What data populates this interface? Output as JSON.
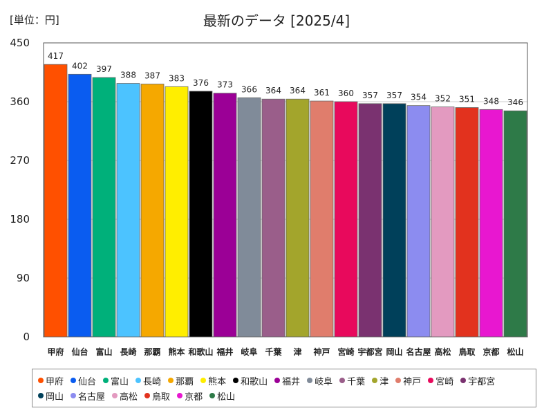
{
  "chart_data": {
    "type": "bar",
    "title": "最新のデータ [2025/4]",
    "unit_label": "[単位：円]",
    "ylim": [
      0,
      450
    ],
    "yticks": [
      0,
      90,
      180,
      270,
      360,
      450
    ],
    "grid": true,
    "legend_position": "bottom",
    "categories": [
      "甲府",
      "仙台",
      "富山",
      "長崎",
      "那覇",
      "熊本",
      "和歌山",
      "福井",
      "岐阜",
      "千葉",
      "津",
      "神戸",
      "宮崎",
      "宇都宮",
      "岡山",
      "名古屋",
      "高松",
      "鳥取",
      "京都",
      "松山"
    ],
    "values": [
      417,
      402,
      397,
      388,
      387,
      383,
      376,
      373,
      366,
      364,
      364,
      361,
      360,
      357,
      357,
      354,
      352,
      351,
      348,
      346
    ],
    "colors": [
      "#ff5000",
      "#0a5cf0",
      "#00b07a",
      "#4cc3ff",
      "#f5a800",
      "#ffee00",
      "#000000",
      "#9b0096",
      "#808b99",
      "#9a5e8a",
      "#a3a52c",
      "#e07d6c",
      "#e8095c",
      "#7a3270",
      "#00405a",
      "#8c8cf0",
      "#e39ac0",
      "#e2321e",
      "#e817d0",
      "#2e7a48"
    ]
  }
}
